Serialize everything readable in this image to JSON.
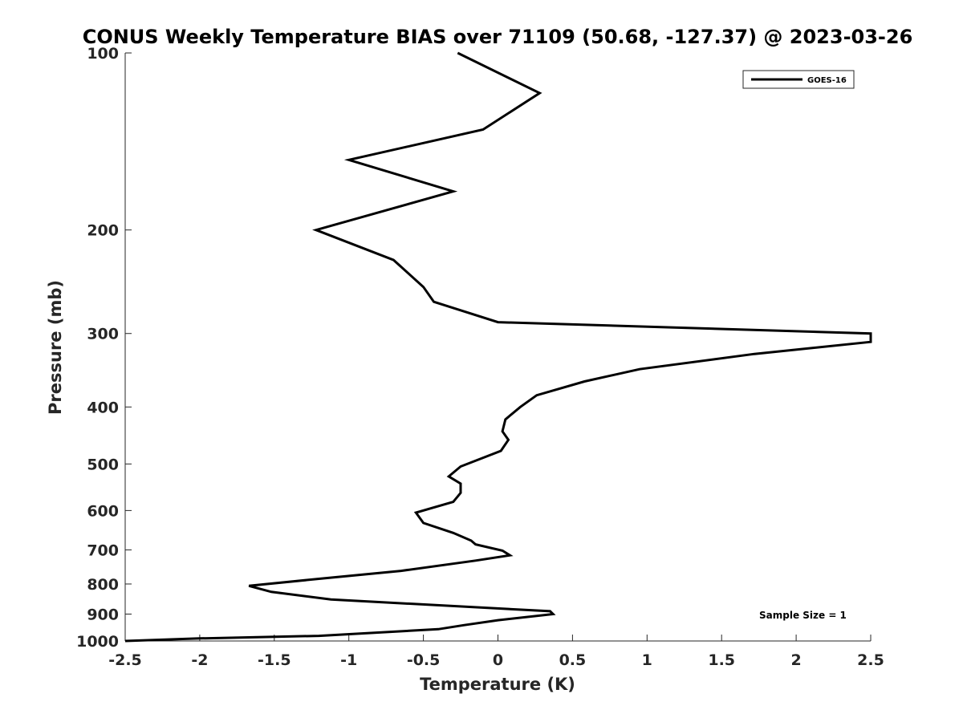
{
  "chart_data": {
    "type": "line",
    "title": "CONUS Weekly Temperature BIAS over 71109 (50.68, -127.37) @ 2023-03-26",
    "xlabel": "Temperature (K)",
    "ylabel": "Pressure (mb)",
    "xlim": [
      -2.5,
      2.5
    ],
    "ylim": [
      100,
      1000
    ],
    "y_scale": "log",
    "y_reversed": true,
    "x_ticks": [
      "-2.5",
      "-2",
      "-1.5",
      "-1",
      "-0.5",
      "0",
      "0.5",
      "1",
      "1.5",
      "2",
      "2.5"
    ],
    "x_tick_values": [
      -2.5,
      -2,
      -1.5,
      -1,
      -0.5,
      0,
      0.5,
      1,
      1.5,
      2,
      2.5
    ],
    "y_ticks": [
      "100",
      "200",
      "300",
      "400",
      "500",
      "600",
      "700",
      "800",
      "900",
      "1000"
    ],
    "y_tick_values": [
      100,
      200,
      300,
      400,
      500,
      600,
      700,
      800,
      900,
      1000
    ],
    "grid": false,
    "legend_position": "top-right",
    "annotation": "Sample Size = 1",
    "series": [
      {
        "name": "GOES-16",
        "color": "#000000",
        "points": [
          [
            -0.27,
            100
          ],
          [
            0.28,
            117
          ],
          [
            -0.1,
            135
          ],
          [
            -1.0,
            152
          ],
          [
            -0.3,
            172
          ],
          [
            -1.22,
            200
          ],
          [
            -0.7,
            225
          ],
          [
            -0.5,
            250
          ],
          [
            -0.43,
            265
          ],
          [
            0.0,
            287
          ],
          [
            2.5,
            300
          ],
          [
            2.5,
            310
          ],
          [
            1.72,
            325
          ],
          [
            0.95,
            345
          ],
          [
            0.58,
            362
          ],
          [
            0.26,
            382
          ],
          [
            0.15,
            400
          ],
          [
            0.05,
            420
          ],
          [
            0.03,
            440
          ],
          [
            0.07,
            455
          ],
          [
            0.02,
            475
          ],
          [
            -0.25,
            505
          ],
          [
            -0.33,
            525
          ],
          [
            -0.25,
            540
          ],
          [
            -0.25,
            560
          ],
          [
            -0.3,
            580
          ],
          [
            -0.55,
            605
          ],
          [
            -0.5,
            630
          ],
          [
            -0.3,
            655
          ],
          [
            -0.18,
            675
          ],
          [
            -0.15,
            685
          ],
          [
            0.03,
            702
          ],
          [
            0.08,
            715
          ],
          [
            -0.15,
            730
          ],
          [
            -0.65,
            760
          ],
          [
            -1.2,
            784
          ],
          [
            -1.67,
            806
          ],
          [
            -1.52,
            825
          ],
          [
            -1.12,
            850
          ],
          [
            0.35,
            890
          ],
          [
            0.37,
            900
          ],
          [
            0.0,
            922
          ],
          [
            -0.23,
            940
          ],
          [
            -0.4,
            955
          ],
          [
            -1.2,
            980
          ],
          [
            -2.0,
            990
          ],
          [
            -2.5,
            1000
          ]
        ]
      }
    ]
  }
}
